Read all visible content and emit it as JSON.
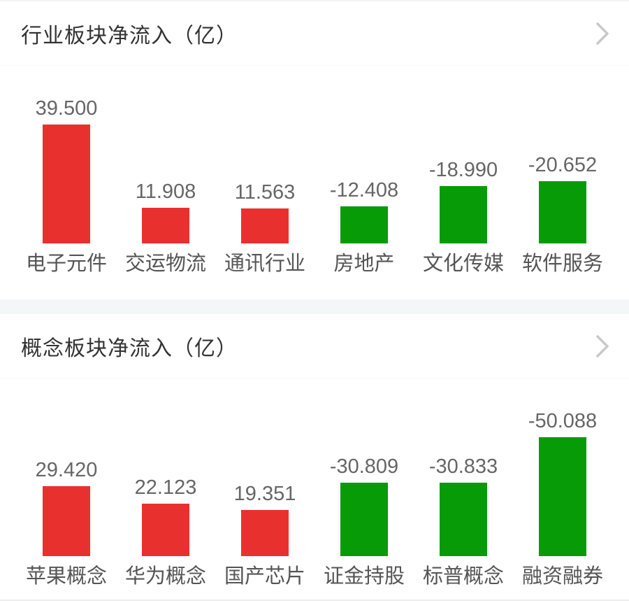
{
  "colors": {
    "positive_bar": "#e8312f",
    "negative_bar": "#089b08",
    "header_text": "#333333",
    "value_text": "#666666",
    "category_text": "#555555",
    "separator_band": "#f4f7f7",
    "chevron": "#c9c9c9"
  },
  "sections": [
    {
      "title": "行业板块净流入（亿）",
      "chevron_icon": "chevron-right"
    },
    {
      "title": "概念板块净流入（亿）",
      "chevron_icon": "chevron-right"
    }
  ],
  "chart_data": [
    {
      "type": "bar",
      "title": "行业板块净流入（亿）",
      "unit": "亿",
      "categories": [
        "电子元件",
        "交运物流",
        "通讯行业",
        "房地产",
        "文化传媒",
        "软件服务"
      ],
      "values": [
        39.5,
        11.908,
        11.563,
        -12.408,
        -18.99,
        -20.652
      ],
      "value_labels": [
        "39.500",
        "11.908",
        "11.563",
        "-12.408",
        "-18.990",
        "-20.652"
      ],
      "bar_color_positive": "#e8312f",
      "bar_color_negative": "#089b08",
      "baseline": "shared, bars drawn upward by absolute value",
      "grid": false,
      "legend": "none"
    },
    {
      "type": "bar",
      "title": "概念板块净流入（亿）",
      "unit": "亿",
      "categories": [
        "苹果概念",
        "华为概念",
        "国产芯片",
        "证金持股",
        "标普概念",
        "融资融券"
      ],
      "values": [
        29.42,
        22.123,
        19.351,
        -30.809,
        -30.833,
        -50.088
      ],
      "value_labels": [
        "29.420",
        "22.123",
        "19.351",
        "-30.809",
        "-30.833",
        "-50.088"
      ],
      "bar_color_positive": "#e8312f",
      "bar_color_negative": "#089b08",
      "baseline": "shared, bars drawn upward by absolute value",
      "grid": false,
      "legend": "none"
    }
  ]
}
